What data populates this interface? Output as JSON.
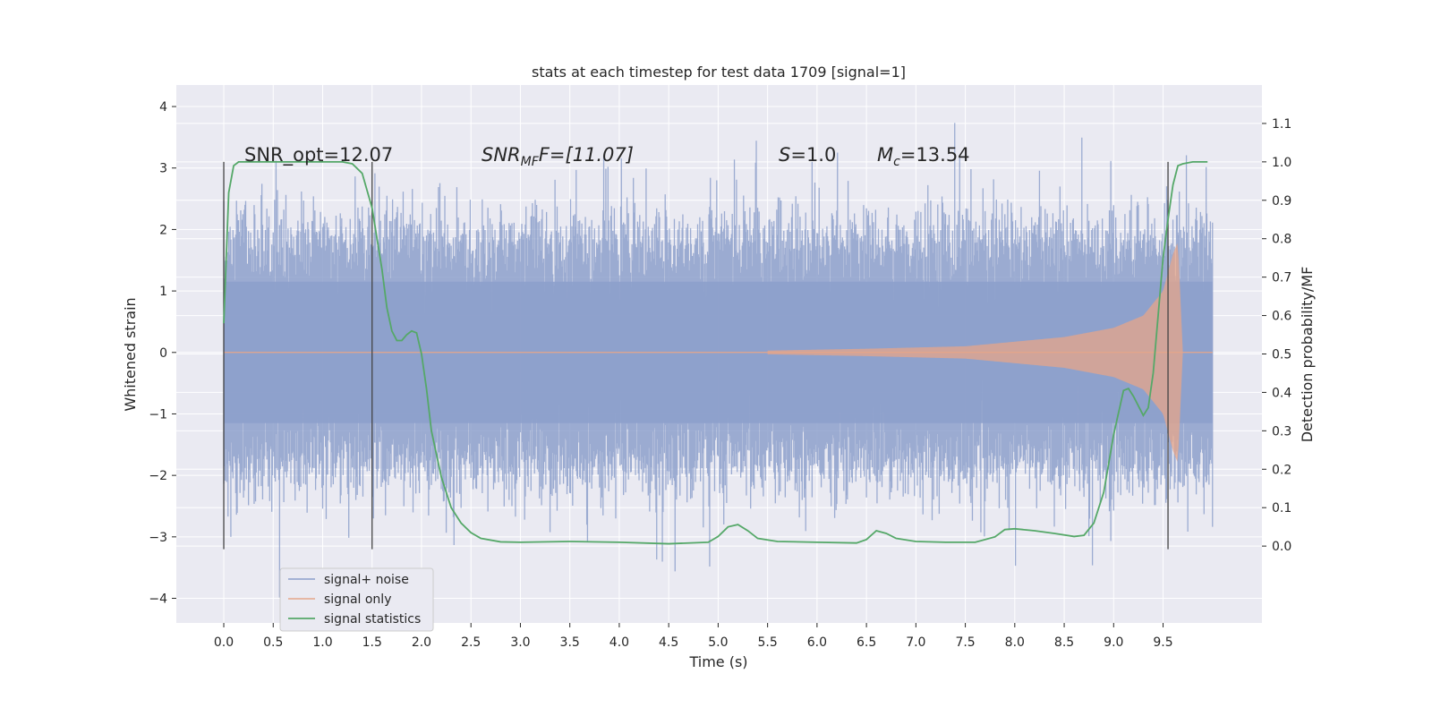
{
  "chart_data": {
    "type": "line",
    "title": "stats at each timestep for test data 1709 [signal=1]",
    "xlabel": "Time (s)",
    "ylabel_left": "Whitened strain",
    "ylabel_right": "Detection probability/MF",
    "xlim": [
      -0.48,
      10.5
    ],
    "ylim_left": [
      -4.4,
      4.35
    ],
    "ylim_right": [
      -0.2,
      1.2
    ],
    "x_ticks": [
      0.0,
      0.5,
      1.0,
      1.5,
      2.0,
      2.5,
      3.0,
      3.5,
      4.0,
      4.5,
      5.0,
      5.5,
      6.0,
      6.5,
      7.0,
      7.5,
      8.0,
      8.5,
      9.0,
      9.5
    ],
    "x_tick_labels": [
      "0.0",
      "0.5",
      "1.0",
      "1.5",
      "2.0",
      "2.5",
      "3.0",
      "3.5",
      "4.0",
      "4.5",
      "5.0",
      "5.5",
      "6.0",
      "6.5",
      "7.0",
      "7.5",
      "8.0",
      "8.5",
      "9.0",
      "9.5"
    ],
    "y_ticks_left": [
      -4,
      -3,
      -2,
      -1,
      0,
      1,
      2,
      3,
      4
    ],
    "y_tick_labels_left": [
      "−4",
      "−3",
      "−2",
      "−1",
      "0",
      "1",
      "2",
      "3",
      "4"
    ],
    "y_ticks_right": [
      0.0,
      0.1,
      0.2,
      0.3,
      0.4,
      0.5,
      0.6,
      0.7,
      0.8,
      0.9,
      1.0,
      1.1
    ],
    "y_tick_labels_right": [
      "0.0",
      "0.1",
      "0.2",
      "0.3",
      "0.4",
      "0.5",
      "0.6",
      "0.7",
      "0.8",
      "0.9",
      "1.0",
      "1.1"
    ],
    "grid": true,
    "legend_position": "lower-left",
    "series": [
      {
        "name": "signal+ noise",
        "axis": "left",
        "color": "#8da0cb",
        "description_values": {
          "t_range": [
            0.0,
            10.0
          ],
          "typical_envelope": [
            -2.0,
            2.0
          ],
          "peak_max": 4.0,
          "peak_min": -4.05
        }
      },
      {
        "name": "signal only",
        "axis": "left",
        "color": "#e5a68a",
        "t_range": [
          5.5,
          9.65
        ],
        "amplitude_at": {
          "t": [
            5.5,
            6.5,
            7.5,
            8.5,
            9.0,
            9.3,
            9.5,
            9.6,
            9.65,
            9.7
          ],
          "amp": [
            0.03,
            0.06,
            0.1,
            0.25,
            0.4,
            0.6,
            1.0,
            1.6,
            1.8,
            0.0
          ]
        }
      },
      {
        "name": "signal statistics",
        "axis": "right",
        "color": "#55a868",
        "x": [
          0.0,
          0.05,
          0.1,
          0.15,
          0.2,
          0.3,
          0.5,
          0.8,
          1.0,
          1.2,
          1.3,
          1.4,
          1.5,
          1.6,
          1.65,
          1.7,
          1.75,
          1.8,
          1.85,
          1.9,
          1.95,
          2.0,
          2.05,
          2.1,
          2.2,
          2.3,
          2.4,
          2.5,
          2.6,
          2.8,
          3.0,
          3.5,
          4.0,
          4.5,
          4.9,
          5.0,
          5.1,
          5.2,
          5.3,
          5.4,
          5.6,
          6.0,
          6.4,
          6.5,
          6.6,
          6.7,
          6.8,
          7.0,
          7.3,
          7.6,
          7.8,
          7.9,
          8.0,
          8.2,
          8.4,
          8.6,
          8.7,
          8.8,
          8.9,
          9.0,
          9.1,
          9.15,
          9.2,
          9.3,
          9.35,
          9.4,
          9.45,
          9.5,
          9.55,
          9.6,
          9.65,
          9.7,
          9.8,
          9.9,
          9.95
        ],
        "y": [
          0.58,
          0.92,
          0.99,
          1.0,
          1.0,
          1.0,
          1.0,
          1.0,
          1.0,
          1.0,
          0.995,
          0.97,
          0.88,
          0.72,
          0.62,
          0.56,
          0.535,
          0.535,
          0.55,
          0.56,
          0.555,
          0.5,
          0.41,
          0.3,
          0.18,
          0.1,
          0.06,
          0.035,
          0.02,
          0.011,
          0.01,
          0.012,
          0.01,
          0.006,
          0.01,
          0.025,
          0.05,
          0.056,
          0.04,
          0.02,
          0.012,
          0.01,
          0.008,
          0.017,
          0.04,
          0.033,
          0.02,
          0.012,
          0.01,
          0.01,
          0.024,
          0.043,
          0.045,
          0.04,
          0.033,
          0.025,
          0.028,
          0.06,
          0.14,
          0.29,
          0.405,
          0.41,
          0.39,
          0.34,
          0.36,
          0.45,
          0.6,
          0.75,
          0.85,
          0.94,
          0.99,
          0.995,
          1.0,
          1.0,
          1.0
        ]
      }
    ],
    "vertical_lines": [
      {
        "x": 0.0,
        "y_left_range": [
          -3.2,
          3.1
        ]
      },
      {
        "x": 1.5,
        "y_left_range": [
          -3.2,
          3.1
        ]
      },
      {
        "x": 9.55,
        "y_left_range": [
          -3.2,
          3.1
        ]
      }
    ],
    "annotations": [
      {
        "text": "SNR_opt=12.07",
        "italic": false
      },
      {
        "base": "SNR",
        "sub": "MF",
        "rest": "F=[11.07]",
        "italic": true
      },
      {
        "base": "S",
        "rest": "=1.0",
        "italic": true
      },
      {
        "base": "M",
        "sub": "c",
        "rest": "=13.54",
        "italic": true
      }
    ],
    "colors": {
      "plot_bg": "#eaeaf2",
      "grid": "#ffffff",
      "vline": "#444444"
    }
  }
}
